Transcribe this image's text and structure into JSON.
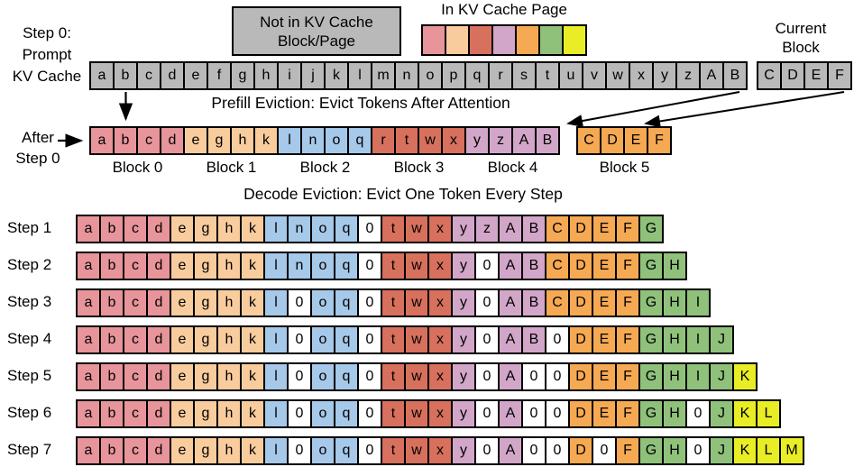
{
  "labels": {
    "step0_lines": [
      "Step 0:",
      "Prompt",
      "KV Cache"
    ],
    "not_in_kv_lines": [
      "Not in KV Cache",
      "Block/Page"
    ],
    "in_kv": "In KV Cache Page",
    "current_block_lines": [
      "Current",
      "Block"
    ],
    "prefill_caption": "Prefill Eviction: Evict Tokens After Attention",
    "after_step0_lines": [
      "After",
      "Step 0"
    ],
    "decode_caption": "Decode Eviction: Evict One Token Every Step"
  },
  "colors": {
    "gray": "#b9b9b9",
    "pink": "#e7949b",
    "peach": "#f8cc9d",
    "blue": "#a6c8e9",
    "terracotta": "#d7705c",
    "plum": "#d2a6c8",
    "orange": "#f6a953",
    "green": "#8fc17b",
    "yellow": "#e8ed26",
    "white": "#ffffff"
  },
  "legend": {
    "swatches": [
      "pink",
      "peach",
      "terracotta",
      "plum",
      "orange",
      "green",
      "yellow"
    ]
  },
  "prompt_row": {
    "color": "gray",
    "tokens": [
      "a",
      "b",
      "c",
      "d",
      "e",
      "f",
      "g",
      "h",
      "i",
      "j",
      "k",
      "l",
      "m",
      "n",
      "o",
      "p",
      "q",
      "r",
      "s",
      "t",
      "u",
      "v",
      "w",
      "x",
      "y",
      "z",
      "A",
      "B"
    ]
  },
  "current_block": {
    "cells": [
      "C|gray",
      "D|gray",
      "E|gray",
      "F|gray"
    ]
  },
  "after_row": {
    "blocks": [
      {
        "label": "Block 0",
        "cells": [
          "a|pink",
          "b|pink",
          "c|pink",
          "d|pink"
        ]
      },
      {
        "label": "Block 1",
        "cells": [
          "e|peach",
          "g|peach",
          "h|peach",
          "k|peach"
        ]
      },
      {
        "label": "Block 2",
        "cells": [
          "l|blue",
          "n|blue",
          "o|blue",
          "q|blue"
        ]
      },
      {
        "label": "Block 3",
        "cells": [
          "r|terracotta",
          "t|terracotta",
          "w|terracotta",
          "x|terracotta"
        ]
      },
      {
        "label": "Block 4",
        "cells": [
          "y|plum",
          "z|plum",
          "A|plum",
          "B|plum"
        ]
      }
    ],
    "block5": {
      "label": "Block 5",
      "cells": [
        "C|orange",
        "D|orange",
        "E|orange",
        "F|orange"
      ]
    }
  },
  "steps": [
    {
      "label": "Step 1",
      "cells": [
        "a|pink",
        "b|pink",
        "c|pink",
        "d|pink",
        "e|peach",
        "g|peach",
        "h|peach",
        "k|peach",
        "l|blue",
        "n|blue",
        "o|blue",
        "q|blue",
        "0|white",
        "t|terracotta",
        "w|terracotta",
        "x|terracotta",
        "y|plum",
        "z|plum",
        "A|plum",
        "B|plum",
        "C|orange",
        "D|orange",
        "E|orange",
        "F|orange",
        "G|green"
      ]
    },
    {
      "label": "Step 2",
      "cells": [
        "a|pink",
        "b|pink",
        "c|pink",
        "d|pink",
        "e|peach",
        "g|peach",
        "h|peach",
        "k|peach",
        "l|blue",
        "n|blue",
        "o|blue",
        "q|blue",
        "0|white",
        "t|terracotta",
        "w|terracotta",
        "x|terracotta",
        "y|plum",
        "0|white",
        "A|plum",
        "B|plum",
        "C|orange",
        "D|orange",
        "E|orange",
        "F|orange",
        "G|green",
        "H|green"
      ]
    },
    {
      "label": "Step 3",
      "cells": [
        "a|pink",
        "b|pink",
        "c|pink",
        "d|pink",
        "e|peach",
        "g|peach",
        "h|peach",
        "k|peach",
        "l|blue",
        "0|white",
        "o|blue",
        "q|blue",
        "0|white",
        "t|terracotta",
        "w|terracotta",
        "x|terracotta",
        "y|plum",
        "0|white",
        "A|plum",
        "B|plum",
        "C|orange",
        "D|orange",
        "E|orange",
        "F|orange",
        "G|green",
        "H|green",
        "I|green"
      ]
    },
    {
      "label": "Step 4",
      "cells": [
        "a|pink",
        "b|pink",
        "c|pink",
        "d|pink",
        "e|peach",
        "g|peach",
        "h|peach",
        "k|peach",
        "l|blue",
        "0|white",
        "o|blue",
        "q|blue",
        "0|white",
        "t|terracotta",
        "w|terracotta",
        "x|terracotta",
        "y|plum",
        "0|white",
        "A|plum",
        "B|plum",
        "0|white",
        "D|orange",
        "E|orange",
        "F|orange",
        "G|green",
        "H|green",
        "I|green",
        "J|green"
      ]
    },
    {
      "label": "Step 5",
      "cells": [
        "a|pink",
        "b|pink",
        "c|pink",
        "d|pink",
        "e|peach",
        "g|peach",
        "h|peach",
        "k|peach",
        "l|blue",
        "0|white",
        "o|blue",
        "q|blue",
        "0|white",
        "t|terracotta",
        "w|terracotta",
        "x|terracotta",
        "y|plum",
        "0|white",
        "A|plum",
        "0|white",
        "0|white",
        "D|orange",
        "E|orange",
        "F|orange",
        "G|green",
        "H|green",
        "I|green",
        "J|green",
        "K|yellow"
      ]
    },
    {
      "label": "Step 6",
      "cells": [
        "a|pink",
        "b|pink",
        "c|pink",
        "d|pink",
        "e|peach",
        "g|peach",
        "h|peach",
        "k|peach",
        "l|blue",
        "0|white",
        "o|blue",
        "q|blue",
        "0|white",
        "t|terracotta",
        "w|terracotta",
        "x|terracotta",
        "y|plum",
        "0|white",
        "A|plum",
        "0|white",
        "0|white",
        "D|orange",
        "E|orange",
        "F|orange",
        "G|green",
        "H|green",
        "0|white",
        "J|green",
        "K|yellow",
        "L|yellow"
      ]
    },
    {
      "label": "Step 7",
      "cells": [
        "a|pink",
        "b|pink",
        "c|pink",
        "d|pink",
        "e|peach",
        "g|peach",
        "h|peach",
        "k|peach",
        "l|blue",
        "0|white",
        "o|blue",
        "q|blue",
        "0|white",
        "t|terracotta",
        "w|terracotta",
        "x|terracotta",
        "y|plum",
        "0|white",
        "A|plum",
        "0|white",
        "0|white",
        "D|orange",
        "0|white",
        "F|orange",
        "G|green",
        "H|green",
        "0|white",
        "J|green",
        "K|yellow",
        "L|yellow",
        "M|yellow"
      ]
    }
  ]
}
